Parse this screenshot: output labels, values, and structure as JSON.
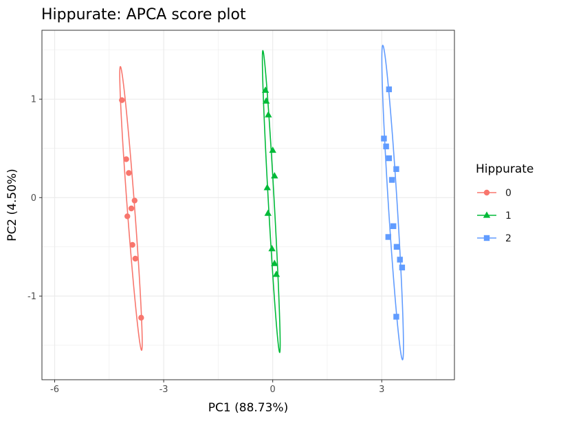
{
  "chart_data": {
    "type": "scatter",
    "title": "Hippurate: APCA score plot",
    "xlabel": "PC1 (88.73%)",
    "ylabel": "PC2 (4.50%)",
    "xlim": [
      -6.35,
      5.0
    ],
    "ylim": [
      -1.85,
      1.7
    ],
    "x_ticks": [
      -6,
      -3,
      0,
      3
    ],
    "x_tick_labels": [
      "-6",
      "-3",
      "0",
      "3"
    ],
    "y_ticks": [
      -1,
      0,
      1
    ],
    "y_tick_labels": [
      "-1",
      "0",
      "1"
    ],
    "grid": true,
    "legend": {
      "title": "Hippurate",
      "position": "right"
    },
    "series": [
      {
        "name": "0",
        "color": "#F8766D",
        "marker": "circle",
        "points": [
          {
            "x": -4.15,
            "y": 0.99
          },
          {
            "x": -4.03,
            "y": 0.39
          },
          {
            "x": -3.96,
            "y": 0.25
          },
          {
            "x": -3.8,
            "y": -0.03
          },
          {
            "x": -3.89,
            "y": -0.11
          },
          {
            "x": -4.0,
            "y": -0.19
          },
          {
            "x": -3.86,
            "y": -0.48
          },
          {
            "x": -3.78,
            "y": -0.62
          },
          {
            "x": -3.62,
            "y": -1.22
          }
        ],
        "ellipse": {
          "cx": -3.9,
          "cy": -0.11,
          "major": 1.47,
          "minor": 0.1,
          "angle": 101.5
        }
      },
      {
        "name": "1",
        "color": "#00BA38",
        "marker": "triangle",
        "points": [
          {
            "x": -0.2,
            "y": 1.09
          },
          {
            "x": -0.18,
            "y": 0.98
          },
          {
            "x": -0.12,
            "y": 0.84
          },
          {
            "x": 0.0,
            "y": 0.48
          },
          {
            "x": 0.05,
            "y": 0.22
          },
          {
            "x": -0.15,
            "y": 0.1
          },
          {
            "x": -0.13,
            "y": -0.16
          },
          {
            "x": -0.02,
            "y": -0.52
          },
          {
            "x": 0.05,
            "y": -0.67
          },
          {
            "x": 0.1,
            "y": -0.78
          }
        ],
        "ellipse": {
          "cx": -0.04,
          "cy": -0.04,
          "major": 1.55,
          "minor": 0.08,
          "angle": 98.6
        }
      },
      {
        "name": "2",
        "color": "#619CFF",
        "marker": "square",
        "points": [
          {
            "x": 3.2,
            "y": 1.1
          },
          {
            "x": 3.06,
            "y": 0.6
          },
          {
            "x": 3.12,
            "y": 0.52
          },
          {
            "x": 3.2,
            "y": 0.4
          },
          {
            "x": 3.4,
            "y": 0.29
          },
          {
            "x": 3.28,
            "y": 0.18
          },
          {
            "x": 3.32,
            "y": -0.29
          },
          {
            "x": 3.18,
            "y": -0.4
          },
          {
            "x": 3.41,
            "y": -0.5
          },
          {
            "x": 3.5,
            "y": -0.63
          },
          {
            "x": 3.56,
            "y": -0.71
          },
          {
            "x": 3.4,
            "y": -1.21
          }
        ],
        "ellipse": {
          "cx": 3.3,
          "cy": -0.05,
          "major": 1.62,
          "minor": 0.12,
          "angle": 99.7
        }
      }
    ]
  }
}
